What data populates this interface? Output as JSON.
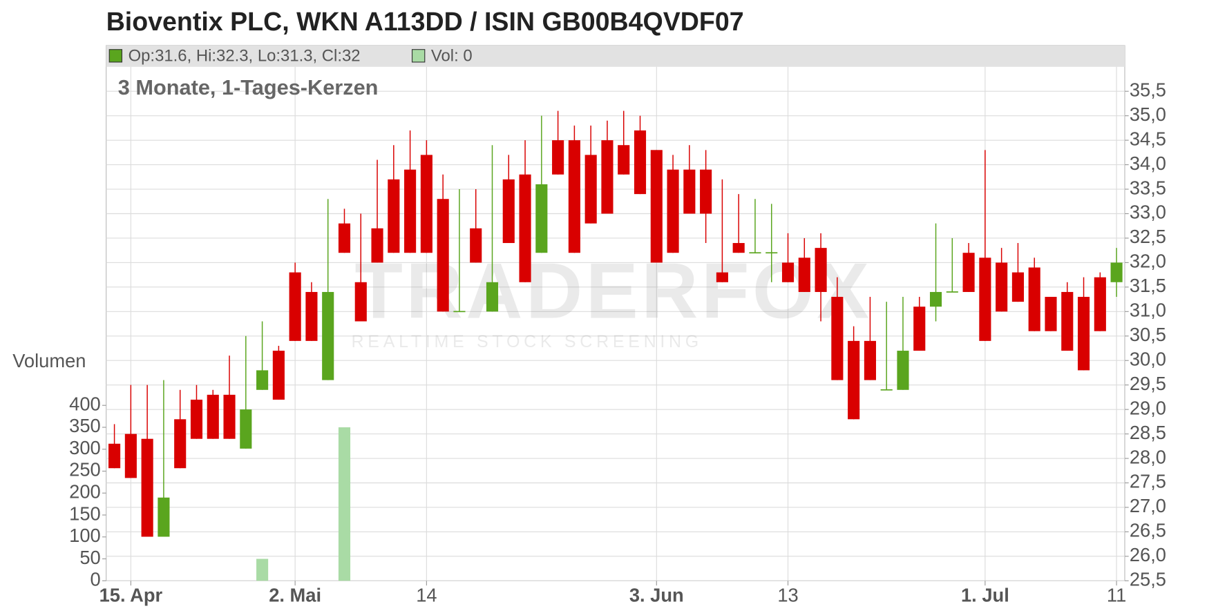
{
  "chart_data": {
    "type": "candlestick",
    "title": "Bioventix PLC, WKN A113DD / ISIN GB00B4QVDF07",
    "subtitle": "3 Monate, 1-Tages-Kerzen",
    "legend": {
      "ohlc": "Op:31.6, Hi:32.3, Lo:31.3, Cl:32",
      "volume": "Vol: 0"
    },
    "watermark": {
      "brand": "TRADERFOX",
      "tagline": "REALTIME STOCK SCREENING"
    },
    "volume_label": "Volumen",
    "categories": [
      null,
      "15. Apr",
      null,
      null,
      null,
      null,
      null,
      null,
      null,
      null,
      null,
      "2. Mai",
      null,
      null,
      null,
      null,
      null,
      null,
      null,
      "14",
      null,
      null,
      null,
      null,
      null,
      null,
      null,
      null,
      null,
      null,
      null,
      null,
      null,
      "3. Jun",
      null,
      null,
      null,
      null,
      null,
      null,
      null,
      "13",
      null,
      null,
      null,
      null,
      null,
      null,
      null,
      null,
      null,
      null,
      null,
      "1. Jul",
      null,
      null,
      null,
      null,
      null,
      null,
      null,
      "11"
    ],
    "open": [
      28.3,
      28.5,
      28.4,
      26.4,
      28.8,
      29.2,
      29.3,
      29.3,
      28.2,
      29.4,
      30.2,
      31.8,
      31.4,
      29.6,
      32.8,
      31.6,
      32.7,
      33.7,
      33.9,
      34.2,
      33.3,
      31.0,
      32.7,
      31.0,
      33.7,
      33.8,
      32.2,
      34.5,
      34.5,
      34.2,
      34.5,
      34.4,
      34.7,
      34.3,
      33.9,
      33.9,
      33.9,
      31.8,
      32.4,
      32.2,
      32.2,
      32.0,
      32.1,
      32.3,
      31.3,
      30.4,
      30.4,
      29.4,
      29.4,
      31.1,
      31.1,
      31.4,
      32.2,
      32.1,
      32.0,
      31.8,
      31.9,
      31.3,
      31.4,
      31.3,
      31.7,
      31.6
    ],
    "high": [
      28.7,
      29.5,
      29.5,
      29.6,
      29.4,
      29.5,
      29.4,
      30.1,
      30.5,
      30.8,
      30.3,
      32.0,
      31.6,
      33.3,
      33.1,
      33.0,
      34.1,
      34.4,
      34.7,
      34.5,
      33.8,
      33.5,
      33.5,
      34.4,
      34.2,
      34.5,
      35.0,
      35.1,
      34.8,
      34.8,
      34.9,
      35.1,
      35.0,
      34.3,
      34.2,
      34.4,
      34.3,
      33.7,
      33.4,
      33.3,
      33.2,
      32.6,
      32.5,
      32.6,
      31.7,
      30.7,
      31.3,
      31.2,
      31.3,
      31.3,
      32.8,
      32.5,
      32.4,
      34.3,
      32.3,
      32.4,
      32.1,
      31.3,
      31.6,
      31.7,
      31.8,
      32.3
    ],
    "low": [
      27.8,
      27.6,
      26.4,
      26.4,
      27.8,
      28.4,
      28.4,
      28.4,
      28.2,
      29.4,
      29.2,
      30.4,
      30.4,
      29.6,
      32.2,
      30.8,
      32.0,
      32.2,
      32.2,
      32.2,
      31.0,
      31.0,
      32.0,
      31.0,
      32.4,
      31.6,
      32.2,
      33.8,
      32.2,
      32.8,
      33.0,
      33.8,
      33.4,
      32.0,
      32.2,
      33.0,
      32.4,
      31.6,
      32.2,
      32.2,
      31.6,
      31.6,
      31.4,
      30.8,
      29.6,
      28.8,
      29.6,
      29.4,
      29.4,
      30.2,
      30.8,
      31.4,
      31.4,
      30.4,
      31.0,
      31.2,
      30.6,
      30.6,
      30.2,
      29.8,
      30.6,
      31.3
    ],
    "close": [
      27.8,
      27.6,
      26.4,
      27.2,
      27.8,
      28.4,
      28.4,
      28.4,
      29.0,
      29.8,
      29.2,
      30.4,
      30.4,
      31.4,
      32.2,
      30.8,
      32.0,
      32.2,
      32.2,
      32.2,
      31.0,
      31.0,
      32.0,
      31.6,
      32.4,
      31.6,
      33.6,
      33.8,
      32.2,
      32.8,
      33.0,
      33.8,
      33.4,
      32.0,
      32.2,
      33.0,
      33.0,
      31.6,
      32.2,
      32.2,
      32.2,
      31.6,
      31.4,
      31.4,
      29.6,
      28.8,
      29.6,
      29.4,
      30.2,
      30.2,
      31.4,
      31.4,
      31.4,
      30.4,
      31.0,
      31.2,
      30.6,
      30.6,
      30.2,
      29.8,
      30.6,
      32.0
    ],
    "volume": [
      0,
      0,
      0,
      0,
      0,
      0,
      0,
      0,
      0,
      50,
      0,
      0,
      0,
      0,
      350,
      0,
      0,
      0,
      0,
      0,
      0,
      0,
      0,
      0,
      0,
      0,
      0,
      0,
      0,
      0,
      0,
      0,
      0,
      0,
      0,
      0,
      0,
      0,
      0,
      0,
      0,
      0,
      0,
      0,
      0,
      0,
      0,
      0,
      0,
      0,
      0,
      0,
      0,
      0,
      0,
      0,
      0,
      0,
      0,
      0,
      0,
      0
    ],
    "up_color": "#5aa51e",
    "down_color": "#d90000",
    "volume_color": "#a9dba5",
    "ylim": [
      25.5,
      36.0
    ],
    "yticks": [
      {
        "value": 25.5,
        "label": "25,5"
      },
      {
        "value": 26.0,
        "label": "26,0"
      },
      {
        "value": 26.5,
        "label": "26,5"
      },
      {
        "value": 27.0,
        "label": "27,0"
      },
      {
        "value": 27.5,
        "label": "27,5"
      },
      {
        "value": 28.0,
        "label": "28,0"
      },
      {
        "value": 28.5,
        "label": "28,5"
      },
      {
        "value": 29.0,
        "label": "29,0"
      },
      {
        "value": 29.5,
        "label": "29,5"
      },
      {
        "value": 30.0,
        "label": "30,0"
      },
      {
        "value": 30.5,
        "label": "30,5"
      },
      {
        "value": 31.0,
        "label": "31,0"
      },
      {
        "value": 31.5,
        "label": "31,5"
      },
      {
        "value": 32.0,
        "label": "32,0"
      },
      {
        "value": 32.5,
        "label": "32,5"
      },
      {
        "value": 33.0,
        "label": "33,0"
      },
      {
        "value": 33.5,
        "label": "33,5"
      },
      {
        "value": 34.0,
        "label": "34,0"
      },
      {
        "value": 34.5,
        "label": "34,5"
      },
      {
        "value": 35.0,
        "label": "35,0"
      },
      {
        "value": 35.5,
        "label": "35,5"
      }
    ],
    "y2lim": [
      0,
      500
    ],
    "y2ticks": [
      0,
      50,
      100,
      150,
      200,
      250,
      300,
      350,
      400
    ],
    "grid": true
  }
}
